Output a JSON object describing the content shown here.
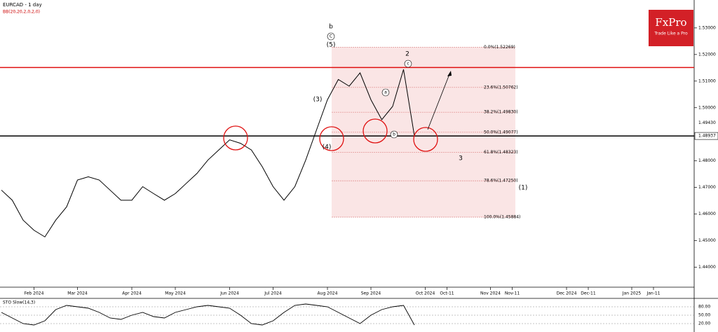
{
  "chart_data": {
    "type": "line",
    "title": "EURCAD - 1 day",
    "indicator": "BB(20,20,2,0,2,0)",
    "categories": [
      null,
      null,
      null,
      "Feb 2024",
      null,
      null,
      null,
      "Mar 2024",
      null,
      null,
      null,
      null,
      "Apr 2024",
      null,
      null,
      null,
      "May 2024",
      null,
      null,
      null,
      null,
      "Jun 2024",
      null,
      null,
      null,
      "Jul 2024",
      null,
      null,
      null,
      null,
      "Aug 2024",
      null,
      null,
      null,
      "Sep 2024",
      null,
      null,
      null,
      null,
      "Oct 2024",
      null,
      "Oct-11",
      null,
      null,
      null,
      "Nov 2024",
      null,
      "Nov-11",
      null,
      null,
      null,
      null,
      "Dec 2024",
      null,
      "Dec-11",
      null,
      null,
      null,
      "Jan 2025",
      null,
      "Jan-11",
      null,
      null
    ],
    "series": [
      {
        "name": "EURCAD",
        "color": "#000000",
        "values": [
          1.469,
          1.4652,
          1.4577,
          1.4539,
          1.4514,
          1.4577,
          1.4627,
          1.4728,
          1.474,
          1.4728,
          1.469,
          1.4652,
          1.4652,
          1.4703,
          1.4677,
          1.4652,
          1.4677,
          1.4715,
          1.4753,
          1.4803,
          1.4841,
          1.4879,
          1.4866,
          1.4841,
          1.4778,
          1.4703,
          1.4652,
          1.4703,
          1.4803,
          1.4917,
          1.503,
          1.5106,
          1.5081,
          1.5131,
          1.503,
          1.4955,
          1.5005,
          1.5144,
          1.4894,
          null,
          null,
          null,
          null,
          null,
          null,
          null,
          null,
          null,
          null,
          null,
          null,
          null,
          null,
          null,
          null,
          null,
          null,
          null,
          null,
          null,
          null,
          null,
          null
        ]
      }
    ],
    "ylim": [
      1.4325,
      1.5405
    ],
    "yticks": [
      {
        "value": 1.53,
        "label": "1.53000"
      },
      {
        "value": 1.52,
        "label": "1.52000"
      },
      {
        "value": 1.51,
        "label": "1.51000"
      },
      {
        "value": 1.5,
        "label": "1.50000"
      },
      {
        "value": 1.48,
        "label": "1.48000"
      },
      {
        "value": 1.47,
        "label": "1.47000"
      },
      {
        "value": 1.46,
        "label": "1.46000"
      },
      {
        "value": 1.45,
        "label": "1.45000"
      },
      {
        "value": 1.44,
        "label": "1.44000"
      }
    ],
    "price_labels": [
      {
        "value": 1.4943,
        "label": "1.49430"
      },
      {
        "value": 1.48937,
        "label": "1.48937"
      }
    ],
    "hlines": [
      {
        "value": 1.5151,
        "color": "#e01010"
      },
      {
        "value": 1.48937,
        "color": "#000000"
      }
    ],
    "fib_levels": [
      {
        "value": 1.52269,
        "label": "0.0%(1.52269)"
      },
      {
        "value": 1.50762,
        "label": "23.6%(1.50762)"
      },
      {
        "value": 1.4983,
        "label": "38.2%(1.49830)"
      },
      {
        "value": 1.49077,
        "label": "50.0%(1.49077)"
      },
      {
        "value": 1.48323,
        "label": "61.8%(1.48323)"
      },
      {
        "value": 1.4725,
        "label": "78.6%(1.47250)"
      },
      {
        "value": 1.45884,
        "label": "100.0%(1.45884)"
      }
    ],
    "annotations": [
      "b",
      "C",
      "(5)",
      "2",
      "c",
      "a",
      "b",
      "(3)",
      "(4)",
      "3",
      "(1)"
    ],
    "oscillator": {
      "title": "STO Slow(14,3)",
      "color": "#000000",
      "values": [
        60,
        40,
        20,
        15,
        30,
        70,
        85,
        80,
        75,
        60,
        40,
        35,
        50,
        60,
        45,
        40,
        60,
        70,
        80,
        85,
        80,
        75,
        50,
        20,
        15,
        30,
        60,
        85,
        90,
        85,
        80,
        60,
        40,
        20,
        50,
        70,
        80,
        85,
        15,
        null,
        null,
        null,
        null,
        null,
        null,
        null,
        null,
        null,
        null,
        null,
        null,
        null,
        null,
        null,
        null,
        null,
        null,
        null,
        null,
        null,
        null,
        null,
        null
      ],
      "ylim": [
        0,
        100
      ],
      "yticks": [
        {
          "value": 80,
          "label": "80.00"
        },
        {
          "value": 50,
          "label": "50.00"
        },
        {
          "value": 20,
          "label": "20.00"
        }
      ]
    },
    "logo": {
      "name": "FxPro",
      "tagline": "Trade Like a Pro"
    }
  }
}
